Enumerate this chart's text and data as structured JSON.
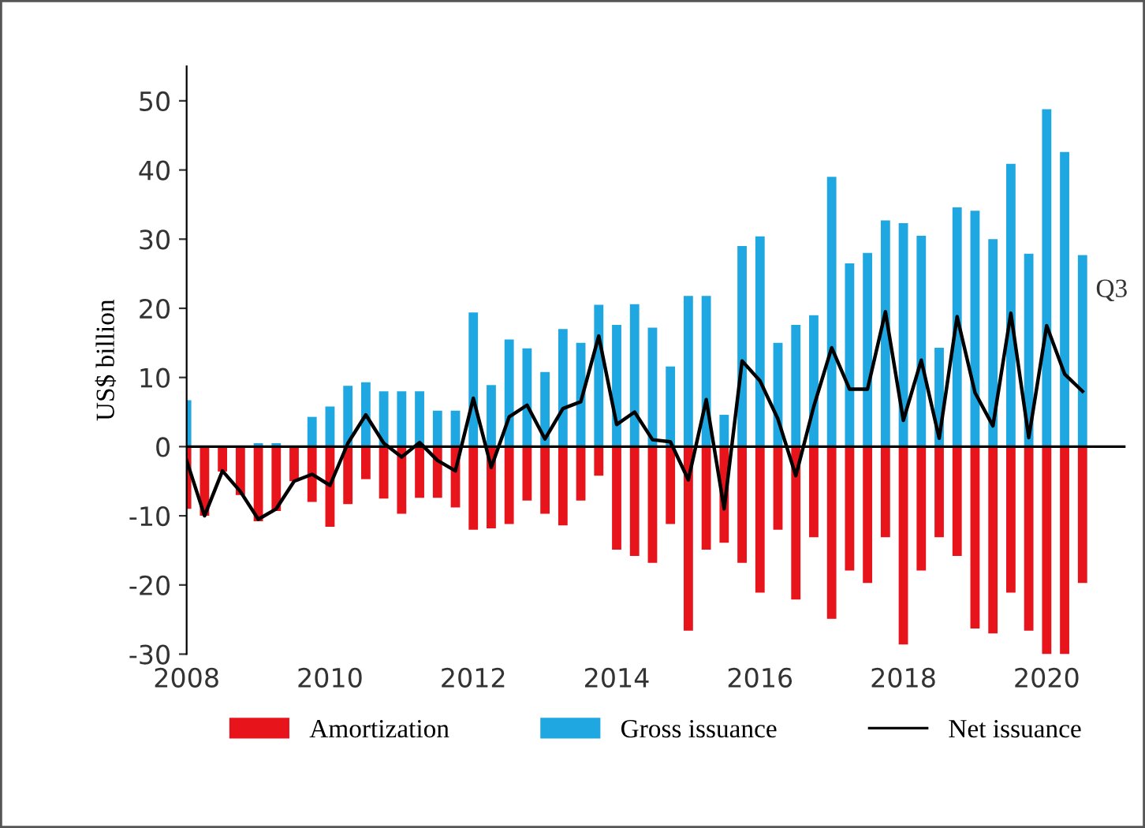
{
  "chart_data": {
    "type": "bar",
    "ylabel": "US$ billion",
    "x": [
      2008.0,
      2008.25,
      2008.5,
      2008.75,
      2009.0,
      2009.25,
      2009.5,
      2009.75,
      2010.0,
      2010.25,
      2010.5,
      2010.75,
      2011.0,
      2011.25,
      2011.5,
      2011.75,
      2012.0,
      2012.25,
      2012.5,
      2012.75,
      2013.0,
      2013.25,
      2013.5,
      2013.75,
      2014.0,
      2014.25,
      2014.5,
      2014.75,
      2015.0,
      2015.25,
      2015.5,
      2015.75,
      2016.0,
      2016.25,
      2016.5,
      2016.75,
      2017.0,
      2017.25,
      2017.5,
      2017.75,
      2018.0,
      2018.25,
      2018.5,
      2018.75,
      2019.0,
      2019.25,
      2019.5,
      2019.75,
      2020.0,
      2020.25,
      2020.5
    ],
    "series": [
      {
        "name": "Amortization",
        "color": "#e8141b",
        "values": [
          -9,
          -10,
          -3.6,
          -7,
          -10.8,
          -9.3,
          -5,
          -8,
          -11.6,
          -8.3,
          -4.7,
          -7.5,
          -9.7,
          -7.4,
          -7.4,
          -8.8,
          -12,
          -11.8,
          -11.2,
          -7.8,
          -9.7,
          -11.4,
          -7.8,
          -4.2,
          -14.9,
          -15.8,
          -16.8,
          -11.2,
          -26.6,
          -14.9,
          -13.9,
          -16.8,
          -21.1,
          -12,
          -22.1,
          -13.1,
          -24.9,
          -17.9,
          -19.7,
          -13.1,
          -28.6,
          -17.9,
          -13.1,
          -15.8,
          -26.3,
          -27,
          -21.1,
          -26.6,
          -30,
          -30,
          -19.7
        ]
      },
      {
        "name": "Gross issuance",
        "color": "#1ea7e0",
        "values": [
          6.7,
          0,
          0,
          0,
          0.5,
          0.5,
          0,
          4.3,
          5.8,
          8.8,
          9.3,
          8,
          8,
          8,
          5.2,
          5.2,
          19.4,
          8.9,
          15.5,
          14.2,
          10.8,
          17,
          15,
          20.5,
          17.6,
          20.6,
          17.2,
          11.6,
          21.8,
          21.8,
          4.6,
          29,
          30.4,
          15,
          17.6,
          19,
          39,
          26.5,
          28,
          32.7,
          32.3,
          30.5,
          14.3,
          34.6,
          34.1,
          30,
          40.9,
          27.9,
          48.8,
          42.6,
          27.7
        ]
      },
      {
        "name": "Net issuance",
        "type": "line",
        "color": "#000000",
        "values": [
          -2,
          -10,
          -3.5,
          -6.5,
          -10.5,
          -9,
          -5,
          -4,
          -5.6,
          0.5,
          4.6,
          0.5,
          -1.5,
          0.6,
          -2,
          -3.5,
          7,
          -3,
          4.3,
          6,
          1.1,
          5.5,
          6.5,
          16,
          3.2,
          5,
          1,
          0.7,
          -4.8,
          6.8,
          -9,
          12.4,
          9.5,
          4,
          -4.2,
          5.8,
          14.3,
          8.3,
          8.3,
          19.5,
          3.8,
          12.5,
          1.2,
          18.8,
          7.8,
          3,
          19.3,
          1.3,
          17.5,
          10.5,
          8
        ]
      }
    ],
    "annotations": [
      {
        "text": "Q3",
        "x": 2020.5,
        "y": 21
      }
    ],
    "xlim": [
      2008,
      2021.1
    ],
    "xticks": [
      2008,
      2010,
      2012,
      2014,
      2016,
      2018,
      2020
    ],
    "ylim": [
      -30,
      55
    ],
    "yticks": [
      -30,
      -20,
      -10,
      0,
      10,
      20,
      30,
      40,
      50
    ],
    "stacked": true,
    "ref_lines": [
      {
        "axis": "y",
        "value": 0,
        "color": "#000000"
      }
    ],
    "grid": false,
    "legend": "bottom",
    "line_style": "solid",
    "marker": "none"
  }
}
